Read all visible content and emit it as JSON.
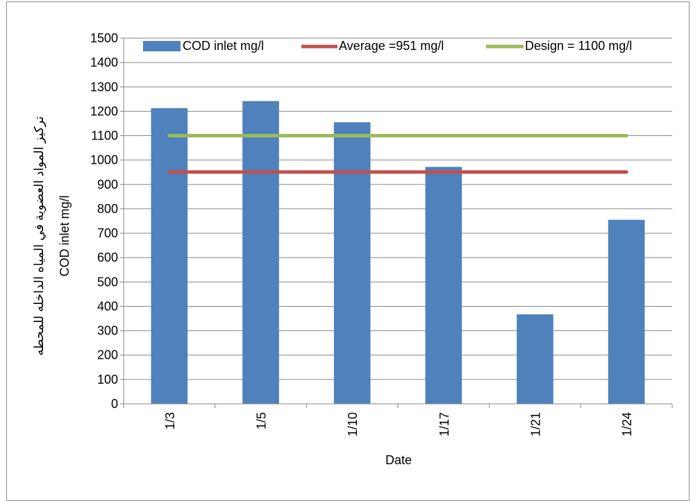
{
  "chart_data": {
    "type": "bar",
    "categories": [
      "1/3",
      "1/5",
      "1/10",
      "1/17",
      "1/21",
      "1/24"
    ],
    "series": [
      {
        "name": "COD inlet mg/l",
        "kind": "bar",
        "color": "#4f81bd",
        "values": [
          1213,
          1242,
          1155,
          972,
          367,
          755
        ]
      },
      {
        "name": "Average =951 mg/l",
        "kind": "line",
        "color": "#c0504d",
        "values": [
          951,
          951,
          951,
          951,
          951,
          951
        ]
      },
      {
        "name": "Design = 1100 mg/l",
        "kind": "line",
        "color": "#9bbb59",
        "values": [
          1100,
          1100,
          1100,
          1100,
          1100,
          1100
        ]
      }
    ],
    "xlabel": "Date",
    "ylabel_lines": [
      "تركيز المواد العضوية في المياه الداخله للمحطه",
      "COD inlet mg/l"
    ],
    "ylim": [
      0,
      1500
    ],
    "yticks": [
      "0",
      "100",
      "200",
      "300",
      "400",
      "500",
      "600",
      "700",
      "800",
      "900",
      "1000",
      "1100",
      "1200",
      "1300",
      "1400",
      "1500"
    ],
    "grid": true,
    "legend_position": "top"
  }
}
